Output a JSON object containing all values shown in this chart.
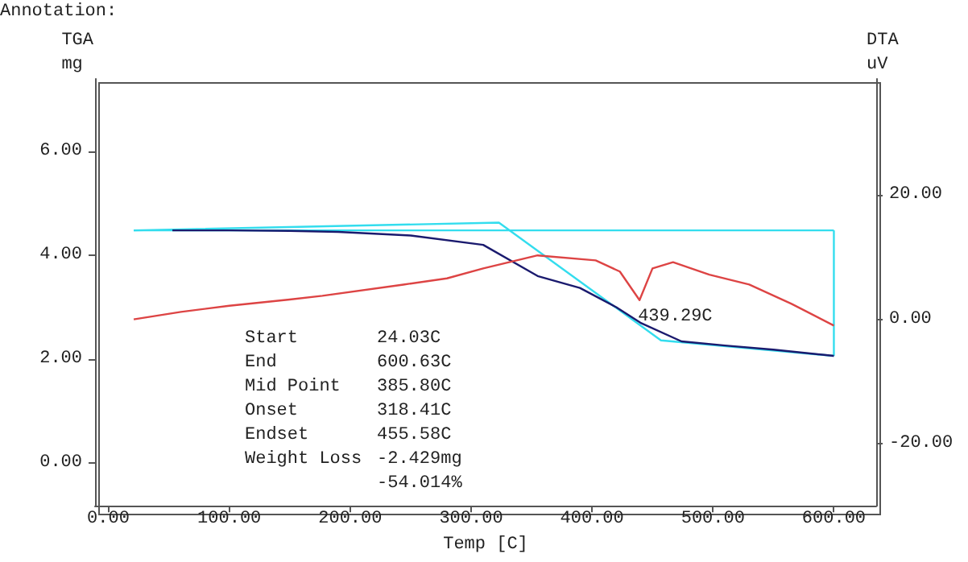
{
  "chart_data": {
    "type": "line",
    "xlabel": "Temp [C]",
    "ylabel": "TGA mg",
    "y2label": "DTA uV",
    "xlim": [
      -11,
      635
    ],
    "xticks": [
      {
        "value": 0,
        "label": "0.00"
      },
      {
        "value": 100,
        "label": "100.00"
      },
      {
        "value": 200,
        "label": "200.00"
      },
      {
        "value": 300,
        "label": "300.00"
      },
      {
        "value": 400,
        "label": "400.00"
      },
      {
        "value": 500,
        "label": "500.00"
      },
      {
        "value": 600,
        "label": "600.00"
      }
    ],
    "ylim": [
      -0.83,
      7.4
    ],
    "yticks": [
      {
        "value": 0,
        "label": "0.00"
      },
      {
        "value": 2,
        "label": "2.00"
      },
      {
        "value": 4,
        "label": "4.00"
      },
      {
        "value": 6,
        "label": "6.00"
      }
    ],
    "y2lim": [
      -30,
      38.7
    ],
    "y2ticks": [
      {
        "value": -20,
        "label": "-20.00"
      },
      {
        "value": 0,
        "label": "0.00"
      },
      {
        "value": 20,
        "label": "20.00"
      }
    ],
    "grid": false,
    "marker": "none",
    "line_style": "solid",
    "series": [
      {
        "color": "#33ddee",
        "x": [
          21,
          323,
          457,
          600
        ],
        "values": [
          4.48,
          4.63,
          2.36,
          2.06
        ]
      },
      {
        "color": "#33ddee",
        "x": [
          21,
          600
        ],
        "values": [
          4.48,
          4.48
        ]
      },
      {
        "color": "#33ddee",
        "x": [
          600,
          600
        ],
        "values": [
          2.06,
          4.48
        ]
      },
      {
        "color": "#1a1a6e",
        "x": [
          53,
          100,
          150,
          190,
          250,
          310,
          355,
          390,
          420,
          440,
          474,
          510,
          550,
          600
        ],
        "values": [
          4.48,
          4.48,
          4.47,
          4.45,
          4.38,
          4.2,
          3.6,
          3.37,
          3.0,
          2.7,
          2.34,
          2.26,
          2.18,
          2.06
        ]
      },
      {
        "color": "#dd4444",
        "axis": "y2",
        "x": [
          21,
          60,
          100,
          150,
          177,
          244,
          280,
          310,
          355,
          403,
          423,
          439.29,
          450,
          467,
          497,
          530,
          565,
          600
        ],
        "values": [
          0.0,
          1.2,
          2.2,
          3.2,
          3.8,
          5.6,
          6.6,
          8.2,
          10.3,
          9.5,
          7.7,
          3.1,
          8.2,
          9.2,
          7.2,
          5.6,
          2.5,
          -1.0
        ]
      }
    ],
    "annotations": [
      "Annotation:",
      "Start",
      "24.03C",
      "End",
      "600.63C",
      "Mid Point",
      "385.80C",
      "Onset",
      "318.41C",
      "Endset",
      "455.58C",
      "Weight Loss",
      "-2.429mg\n-54.014%",
      {
        "text": "439.29C",
        "x": 439.29,
        "y": 3.1
      }
    ]
  }
}
